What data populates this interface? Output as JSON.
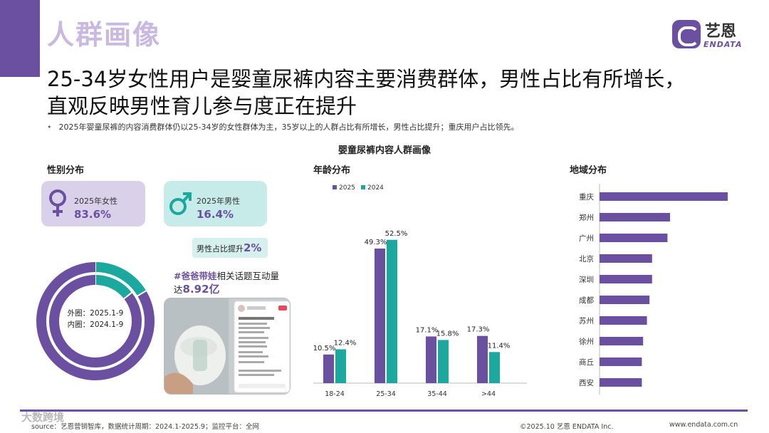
{
  "header": {
    "title": "人群画像",
    "logo_cn": "艺恩",
    "logo_en": "ENDATA"
  },
  "headline": {
    "line1": "25-34岁女性用户是婴童尿裤内容主要消费群体，男性占比有所增长，",
    "line2": "直观反映男性育儿参与度正在提升"
  },
  "bullet": "2025年婴童尿裤的内容消费群体仍以25-34岁的女性群体为主，35岁以上的人群占比有所增长，男性占比提升；重庆用户占比领先。",
  "main_title": "婴童尿裤内容人群画像",
  "gender": {
    "section_title": "性别分布",
    "female": {
      "label": "2025年女性",
      "value": "83.6%"
    },
    "male": {
      "label": "2025年男性",
      "value": "16.4%"
    },
    "raise_label": "男性占比提升",
    "raise_value": "2%",
    "donut_outer": "外圈：2025.1-9",
    "donut_inner": "内圈：2024.1-9",
    "topic_tag": "#爸爸带娃",
    "topic_text": "相关话题互动量",
    "topic_prefix": "达",
    "topic_value": "8.92亿"
  },
  "chart_data": [
    {
      "type": "pie",
      "title": "性别分布",
      "series": [
        {
          "name": "外圈：2025.1-9",
          "values": [
            83.6,
            16.4
          ]
        },
        {
          "name": "内圈：2024.1-9",
          "values": [
            85.6,
            14.4
          ]
        }
      ],
      "categories": [
        "女性",
        "男性"
      ]
    },
    {
      "type": "bar",
      "title": "年龄分布",
      "categories": [
        "18-24",
        "25-34",
        "35-44",
        ">44"
      ],
      "series": [
        {
          "name": "2025",
          "values": [
            10.5,
            49.3,
            17.1,
            17.3
          ]
        },
        {
          "name": "2024",
          "values": [
            12.4,
            52.5,
            15.8,
            11.4
          ]
        }
      ],
      "value_labels": {
        "2025": [
          "10.5%",
          "49.3%",
          "17.1%",
          "17.3%"
        ],
        "2024": [
          "12.4%",
          "52.5%",
          "15.8%",
          "11.4%"
        ]
      },
      "legend_position": "top-left"
    },
    {
      "type": "bar",
      "title": "地域分布",
      "orientation": "horizontal",
      "categories": [
        "重庆",
        "郑州",
        "广州",
        "北京",
        "深圳",
        "成都",
        "苏州",
        "徐州",
        "商丘",
        "西安"
      ],
      "values": [
        100,
        55,
        53,
        41,
        41,
        39,
        37,
        34,
        33,
        33
      ]
    }
  ],
  "colors": {
    "purple": "#6b4fa0",
    "teal": "#1ba89f",
    "light_purple": "#d9d0ea",
    "light_teal": "#c6ebe8"
  },
  "footer": {
    "source": "source：艺恩营销智库，数据统计周期：2024.1-2025.9；监控平台：全网",
    "copyright": "©2025.10  艺恩 ENDATA Inc.",
    "website": "www.endata.com.cn",
    "watermark": "大数跨境"
  }
}
